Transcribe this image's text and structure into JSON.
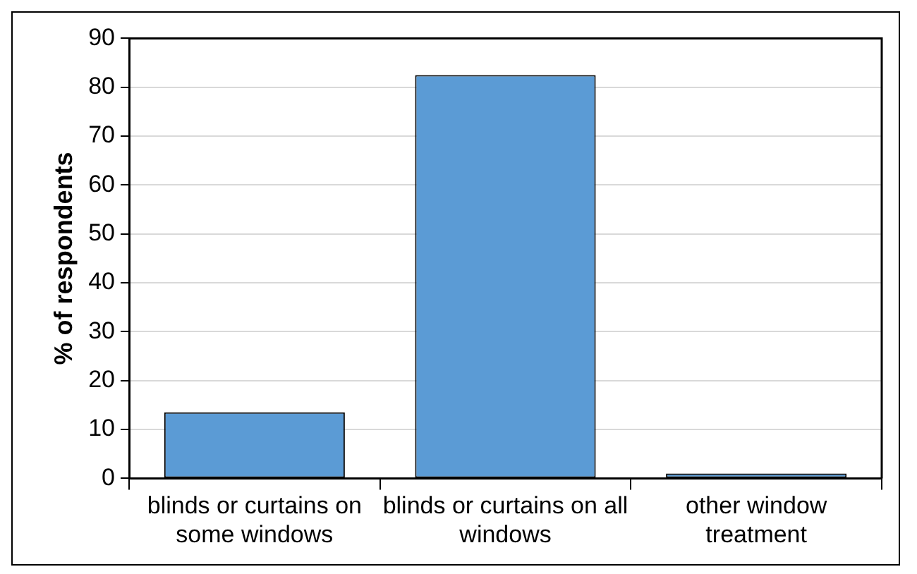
{
  "chart_data": {
    "type": "bar",
    "ylabel": "% of respondents",
    "categories": [
      "blinds or curtains on some windows",
      "blinds or curtains on all windows",
      "other window treatment"
    ],
    "values": [
      13.5,
      82.5,
      1.0
    ],
    "color": "#5b9bd5",
    "ylim": [
      0,
      90
    ],
    "yticks": [
      0,
      10,
      20,
      30,
      40,
      50,
      60,
      70,
      80,
      90
    ],
    "grid": "y",
    "legend": false
  }
}
